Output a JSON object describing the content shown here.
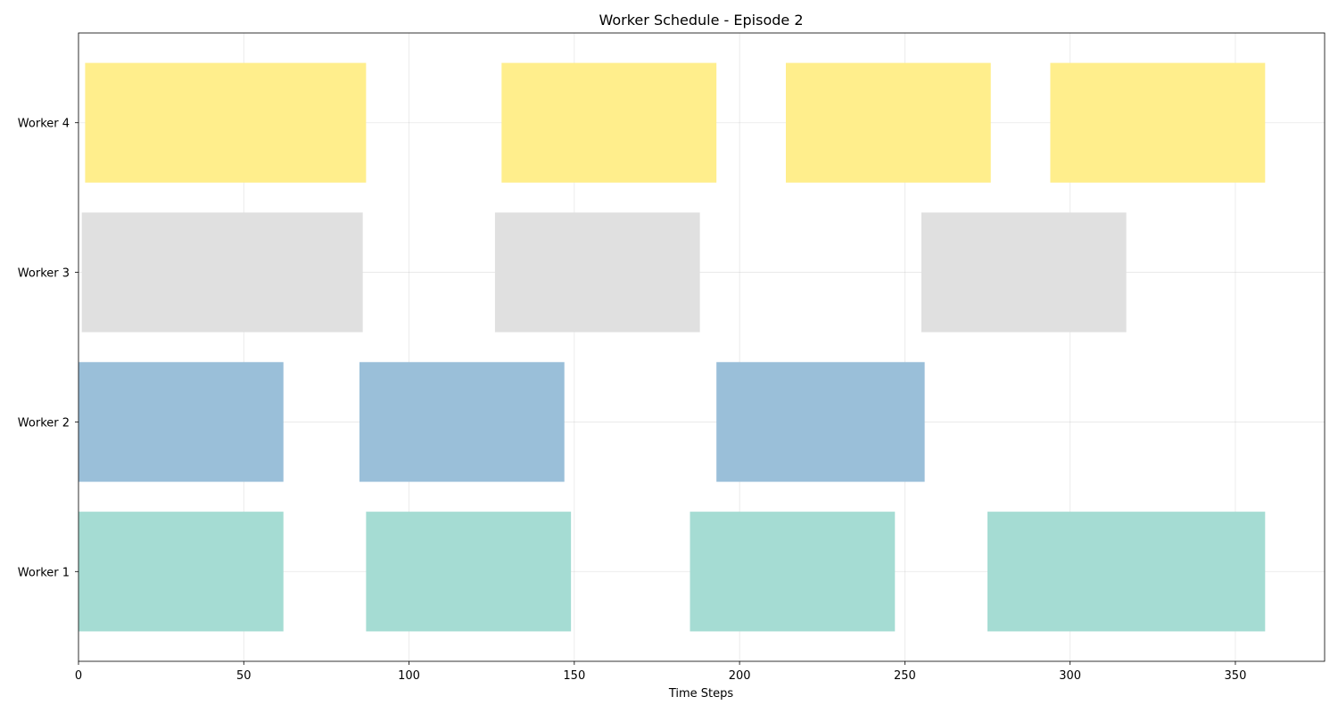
{
  "chart_data": {
    "type": "gantt",
    "title": "Worker Schedule - Episode 2",
    "xlabel": "Time Steps",
    "ylabel": "",
    "xlim": [
      0,
      377
    ],
    "x_ticks": [
      0,
      50,
      100,
      150,
      200,
      250,
      300,
      350
    ],
    "grid": true,
    "legend": "none",
    "categories": [
      "Worker 1",
      "Worker 2",
      "Worker 3",
      "Worker 4"
    ],
    "series": [
      {
        "category": "Worker 1",
        "color": "#a5dcd3",
        "segments": [
          {
            "start": 0,
            "end": 62
          },
          {
            "start": 87,
            "end": 149
          },
          {
            "start": 185,
            "end": 247
          },
          {
            "start": 275,
            "end": 359
          }
        ]
      },
      {
        "category": "Worker 2",
        "color": "#9abfd9",
        "segments": [
          {
            "start": 0,
            "end": 62
          },
          {
            "start": 85,
            "end": 147
          },
          {
            "start": 193,
            "end": 256
          }
        ]
      },
      {
        "category": "Worker 3",
        "color": "#e0e0e0",
        "segments": [
          {
            "start": 1,
            "end": 86
          },
          {
            "start": 126,
            "end": 188
          },
          {
            "start": 255,
            "end": 317
          }
        ]
      },
      {
        "category": "Worker 4",
        "color": "#ffee8c",
        "segments": [
          {
            "start": 2,
            "end": 87
          },
          {
            "start": 128,
            "end": 193
          },
          {
            "start": 214,
            "end": 276
          },
          {
            "start": 294,
            "end": 359
          }
        ]
      }
    ]
  }
}
